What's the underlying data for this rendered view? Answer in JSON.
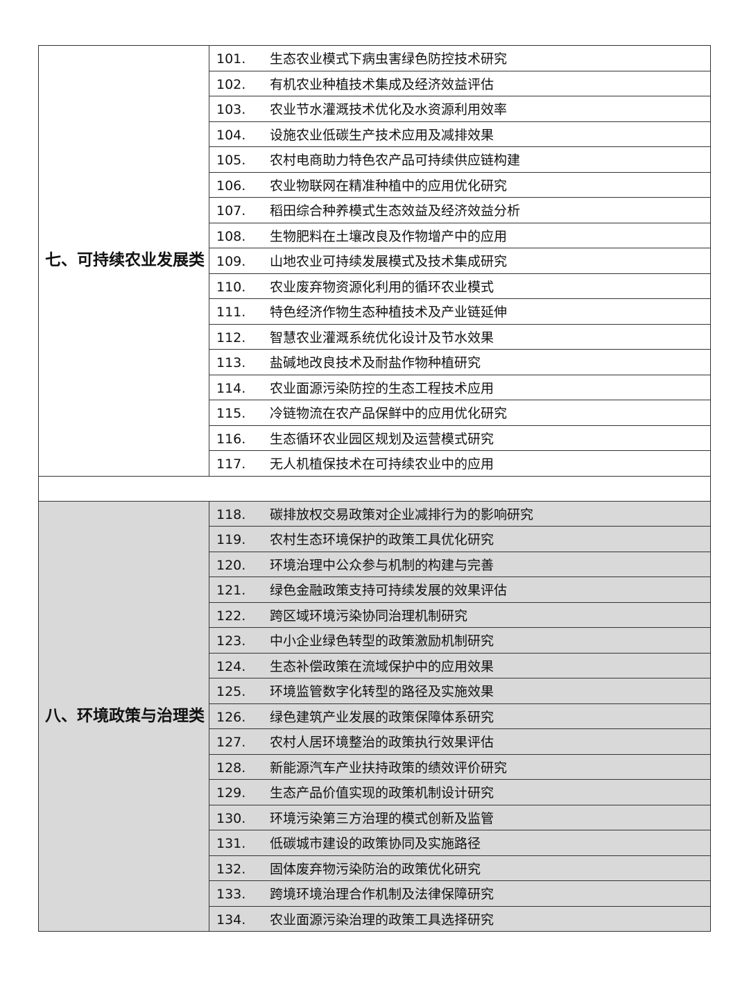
{
  "sections": [
    {
      "category": "七、可持续农业发展类",
      "items": [
        {
          "num": "101.",
          "title": "生态农业模式下病虫害绿色防控技术研究"
        },
        {
          "num": "102.",
          "title": "有机农业种植技术集成及经济效益评估"
        },
        {
          "num": "103.",
          "title": "农业节水灌溉技术优化及水资源利用效率"
        },
        {
          "num": "104.",
          "title": "设施农业低碳生产技术应用及减排效果"
        },
        {
          "num": "105.",
          "title": "农村电商助力特色农产品可持续供应链构建"
        },
        {
          "num": "106.",
          "title": "农业物联网在精准种植中的应用优化研究"
        },
        {
          "num": "107.",
          "title": "稻田综合种养模式生态效益及经济效益分析"
        },
        {
          "num": "108.",
          "title": "生物肥料在土壤改良及作物增产中的应用"
        },
        {
          "num": "109.",
          "title": "山地农业可持续发展模式及技术集成研究"
        },
        {
          "num": "110.",
          "title": "农业废弃物资源化利用的循环农业模式"
        },
        {
          "num": "111.",
          "title": "特色经济作物生态种植技术及产业链延伸"
        },
        {
          "num": "112.",
          "title": "智慧农业灌溉系统优化设计及节水效果"
        },
        {
          "num": "113.",
          "title": "盐碱地改良技术及耐盐作物种植研究"
        },
        {
          "num": "114.",
          "title": "农业面源污染防控的生态工程技术应用"
        },
        {
          "num": "115.",
          "title": "冷链物流在农产品保鲜中的应用优化研究"
        },
        {
          "num": "116.",
          "title": "生态循环农业园区规划及运营模式研究"
        },
        {
          "num": "117.",
          "title": "无人机植保技术在可持续农业中的应用"
        }
      ]
    },
    {
      "category": "八、环境政策与治理类",
      "items": [
        {
          "num": "118.",
          "title": "碳排放权交易政策对企业减排行为的影响研究"
        },
        {
          "num": "119.",
          "title": "农村生态环境保护的政策工具优化研究"
        },
        {
          "num": "120.",
          "title": "环境治理中公众参与机制的构建与完善"
        },
        {
          "num": "121.",
          "title": "绿色金融政策支持可持续发展的效果评估"
        },
        {
          "num": "122.",
          "title": "跨区域环境污染协同治理机制研究"
        },
        {
          "num": "123.",
          "title": "中小企业绿色转型的政策激励机制研究"
        },
        {
          "num": "124.",
          "title": "生态补偿政策在流域保护中的应用效果"
        },
        {
          "num": "125.",
          "title": "环境监管数字化转型的路径及实施效果"
        },
        {
          "num": "126.",
          "title": "绿色建筑产业发展的政策保障体系研究"
        },
        {
          "num": "127.",
          "title": "农村人居环境整治的政策执行效果评估"
        },
        {
          "num": "128.",
          "title": "新能源汽车产业扶持政策的绩效评价研究"
        },
        {
          "num": "129.",
          "title": "生态产品价值实现的政策机制设计研究"
        },
        {
          "num": "130.",
          "title": "环境污染第三方治理的模式创新及监管"
        },
        {
          "num": "131.",
          "title": "低碳城市建设的政策协同及实施路径"
        },
        {
          "num": "132.",
          "title": "固体废弃物污染防治的政策优化研究"
        },
        {
          "num": "133.",
          "title": "跨境环境治理合作机制及法律保障研究"
        },
        {
          "num": "134.",
          "title": "农业面源污染治理的政策工具选择研究"
        }
      ]
    }
  ],
  "colors": {
    "gray_section_bg": "#d9d9d9",
    "border": "#333333"
  }
}
